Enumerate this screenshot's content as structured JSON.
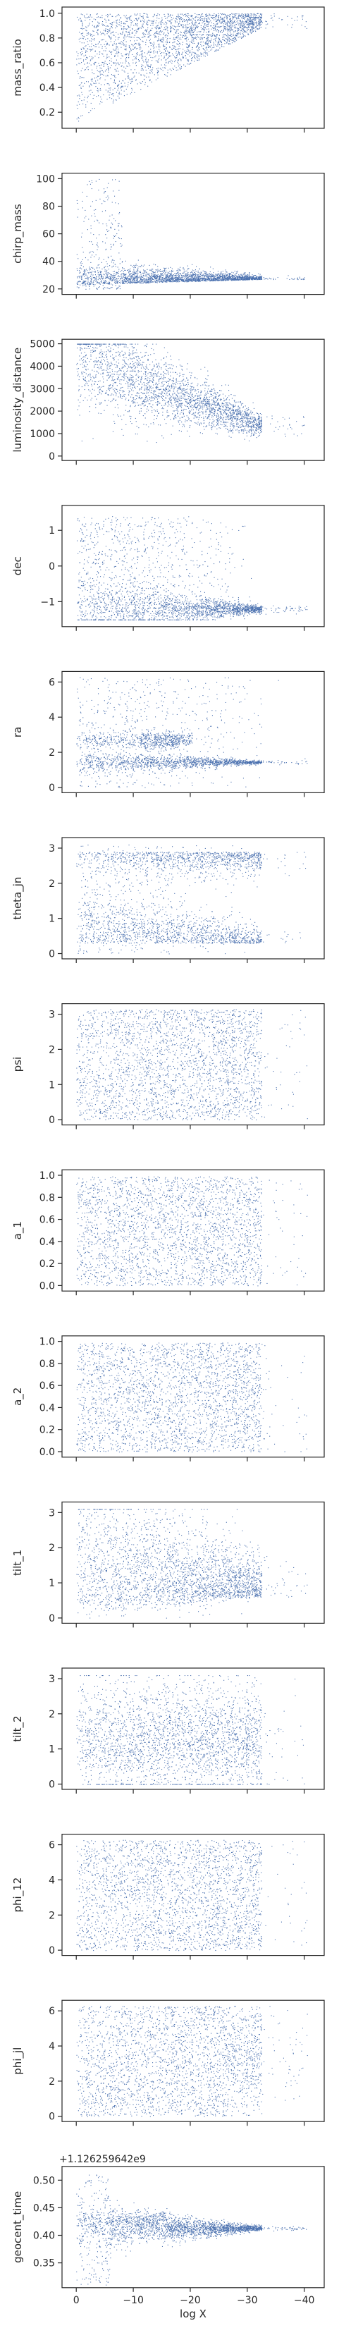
{
  "chart_data": {
    "type": "scatter",
    "marker_color": "#4c72b0",
    "x": {
      "label": "log X",
      "lim": [
        2.5,
        -43.5
      ],
      "ticks": [
        0,
        -10,
        -20,
        -30,
        -40
      ],
      "tick_labels": [
        "0",
        "−10",
        "−20",
        "−30",
        "−40"
      ]
    },
    "panels": [
      {
        "ylabel": "mass_ratio",
        "ylim": [
          0.07,
          1.05
        ],
        "yticks": [
          0.2,
          0.4,
          0.6,
          0.8,
          1.0
        ],
        "ytick_labels": [
          "0.2",
          "0.4",
          "0.6",
          "0.8",
          "1.0"
        ],
        "pattern": "mass_ratio"
      },
      {
        "ylabel": "chirp_mass",
        "ylim": [
          16,
          104
        ],
        "yticks": [
          20,
          40,
          60,
          80,
          100
        ],
        "ytick_labels": [
          "20",
          "40",
          "60",
          "80",
          "100"
        ],
        "pattern": "chirp_mass"
      },
      {
        "ylabel": "luminosity_distance",
        "ylim": [
          -200,
          5200
        ],
        "yticks": [
          0,
          1000,
          2000,
          3000,
          4000,
          5000
        ],
        "ytick_labels": [
          "0",
          "1000",
          "2000",
          "3000",
          "4000",
          "5000"
        ],
        "pattern": "luminosity_distance"
      },
      {
        "ylabel": "dec",
        "ylim": [
          -1.7,
          1.7
        ],
        "yticks": [
          -1,
          0,
          1
        ],
        "ytick_labels": [
          "−1",
          "0",
          "1"
        ],
        "pattern": "dec"
      },
      {
        "ylabel": "ra",
        "ylim": [
          -0.3,
          6.6
        ],
        "yticks": [
          0,
          2,
          4,
          6
        ],
        "ytick_labels": [
          "0",
          "2",
          "4",
          "6"
        ],
        "pattern": "ra"
      },
      {
        "ylabel": "theta_jn",
        "ylim": [
          -0.15,
          3.3
        ],
        "yticks": [
          0,
          1,
          2,
          3
        ],
        "ytick_labels": [
          "0",
          "1",
          "2",
          "3"
        ],
        "pattern": "theta_jn"
      },
      {
        "ylabel": "psi",
        "ylim": [
          -0.15,
          3.3
        ],
        "yticks": [
          0,
          1,
          2,
          3
        ],
        "ytick_labels": [
          "0",
          "1",
          "2",
          "3"
        ],
        "pattern": "uniform",
        "range": [
          0,
          3.14159
        ]
      },
      {
        "ylabel": "a_1",
        "ylim": [
          -0.05,
          1.05
        ],
        "yticks": [
          0.0,
          0.2,
          0.4,
          0.6,
          0.8,
          1.0
        ],
        "ytick_labels": [
          "0.0",
          "0.2",
          "0.4",
          "0.6",
          "0.8",
          "1.0"
        ],
        "pattern": "uniform",
        "range": [
          0,
          0.99
        ]
      },
      {
        "ylabel": "a_2",
        "ylim": [
          -0.05,
          1.05
        ],
        "yticks": [
          0.0,
          0.2,
          0.4,
          0.6,
          0.8,
          1.0
        ],
        "ytick_labels": [
          "0.0",
          "0.2",
          "0.4",
          "0.6",
          "0.8",
          "1.0"
        ],
        "pattern": "uniform",
        "range": [
          0,
          0.99
        ]
      },
      {
        "ylabel": "tilt_1",
        "ylim": [
          -0.15,
          3.3
        ],
        "yticks": [
          0,
          1,
          2,
          3
        ],
        "ytick_labels": [
          "0",
          "1",
          "2",
          "3"
        ],
        "pattern": "tilt_1"
      },
      {
        "ylabel": "tilt_2",
        "ylim": [
          -0.15,
          3.3
        ],
        "yticks": [
          0,
          1,
          2,
          3
        ],
        "ytick_labels": [
          "0",
          "1",
          "2",
          "3"
        ],
        "pattern": "tilt_2"
      },
      {
        "ylabel": "phi_12",
        "ylim": [
          -0.3,
          6.6
        ],
        "yticks": [
          0,
          2,
          4,
          6
        ],
        "ytick_labels": [
          "0",
          "2",
          "4",
          "6"
        ],
        "pattern": "uniform",
        "range": [
          0,
          6.28
        ]
      },
      {
        "ylabel": "phi_jl",
        "ylim": [
          -0.3,
          6.6
        ],
        "yticks": [
          0,
          2,
          4,
          6
        ],
        "ytick_labels": [
          "0",
          "2",
          "4",
          "6"
        ],
        "pattern": "phi_jl"
      },
      {
        "ylabel": "geocent_time",
        "ylim": [
          0.305,
          0.525
        ],
        "yticks": [
          0.35,
          0.4,
          0.45,
          0.5
        ],
        "ytick_labels": [
          "0.35",
          "0.40",
          "0.45",
          "0.50"
        ],
        "offset_text": "+1.126259642e9",
        "pattern": "geocent_time"
      }
    ]
  }
}
